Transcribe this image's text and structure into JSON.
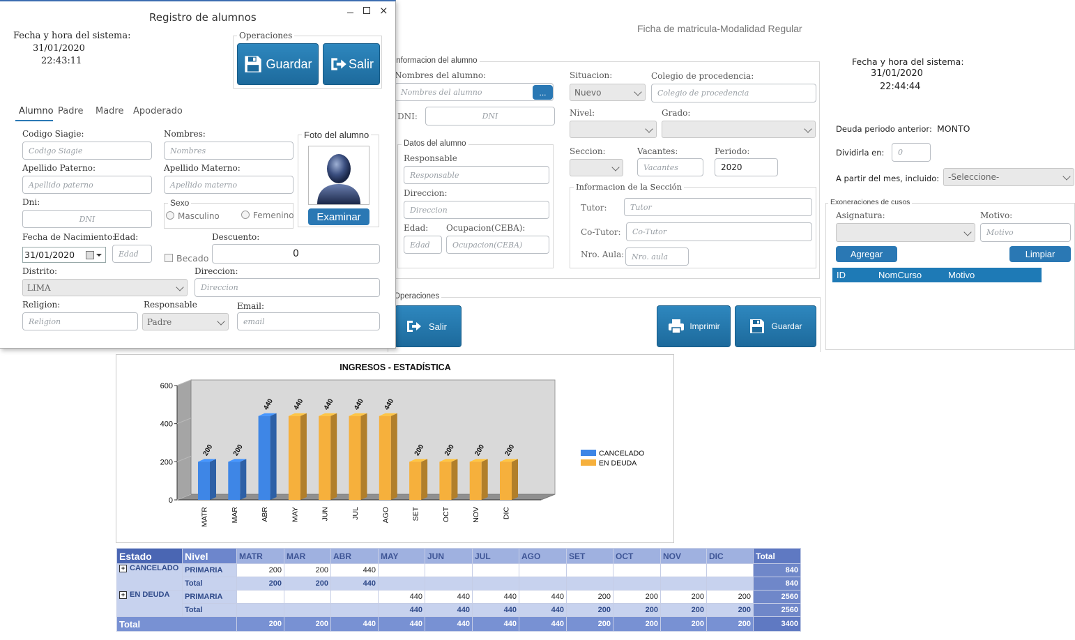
{
  "win1": {
    "title": "Registro de alumnos",
    "datetime_label": "Fecha y hora del sistema:",
    "date": "31/01/2020",
    "time": "22:43:11",
    "ops_label": "Operaciones",
    "guardar": "Guardar",
    "salir": "Salir",
    "tabs": [
      "Alumno",
      "Padre",
      "Madre",
      "Apoderado"
    ],
    "codigo_label": "Codigo Siagie:",
    "codigo_ph": "Codigo Siagie",
    "nombres_label": "Nombres:",
    "nombres_ph": "Nombres",
    "foto_label": "Foto del alumno",
    "examinar": "Examinar",
    "ap_pat_label": "Apellido Paterno:",
    "ap_pat_ph": "Apellido paterno",
    "ap_mat_label": "Apellido Materno:",
    "ap_mat_ph": "Apellido materno",
    "dni_label": "Dni:",
    "dni_ph": "DNI",
    "sexo_label": "Sexo",
    "masculino": "Masculino",
    "femenino": "Femenino",
    "fnac_label": "Fecha de Nacimiento:",
    "fnac_value": "31/01/2020",
    "edad_label": "Edad:",
    "edad_ph": "Edad",
    "descuento_label": "Descuento:",
    "descuento_value": "0",
    "becado": "Becado",
    "distrito_label": "Distrito:",
    "distrito_value": "LIMA",
    "direccion_label": "Direccion:",
    "direccion_ph": "Direccion",
    "religion_label": "Religion:",
    "religion_ph": "Religion",
    "responsable_label": "Responsable",
    "responsable_value": "Padre",
    "email_label": "Email:",
    "email_ph": "email"
  },
  "win2": {
    "title": "Ficha de matricula-Modalidad Regular",
    "info_label": "Informacion del alumno",
    "nombres_label": "Nombres del alumno:",
    "nombres_ph": "Nombres del alumno",
    "dots": "...",
    "dni_label": "DNI:",
    "dni_ph": "DNI",
    "situacion_label": "Situacion:",
    "situacion_value": "Nuevo",
    "colegio_label": "Colegio de procedencia:",
    "colegio_ph": "Colegio de procedencia",
    "nivel_label": "Nivel:",
    "grado_label": "Grado:",
    "datos_label": "Datos del alumno",
    "responsable_label": "Responsable",
    "responsable_ph": "Responsable",
    "direccion_label": "Direccion:",
    "direccion_ph": "Direccion",
    "edad_label": "Edad:",
    "edad_ph": "Edad",
    "ocupacion_label": "Ocupacion(CEBA):",
    "ocupacion_ph": "Ocupacion(CEBA)",
    "seccion_label": "Seccion:",
    "vacantes_label": "Vacantes:",
    "vacantes_ph": "Vacantes",
    "periodo_label": "Periodo:",
    "periodo_value": "2020",
    "info_seccion_label": "Informacion de la Sección",
    "tutor_label": "Tutor:",
    "tutor_ph": "Tutor",
    "cotutor_label": "Co-Tutor:",
    "cotutor_ph": "Co-Tutor",
    "aula_label": "Nro. Aula:",
    "aula_ph": "Nro. aula",
    "ops_label": "Operaciones",
    "salir": "Salir",
    "imprimir": "Imprimir",
    "guardar": "Guardar",
    "datetime_label": "Fecha y hora del sistema:",
    "date": "31/01/2020",
    "time": "22:44:44",
    "deuda_label": "Deuda periodo anterior:",
    "deuda_value": "MONTO",
    "dividir_label": "Dividirla en:",
    "dividir_ph": "0",
    "partir_label": "A partir del mes, incluido:",
    "partir_value": "-Seleccione-",
    "exo_label": "Exoneraciones de cusos",
    "asignatura_label": "Asignatura:",
    "motivo_label": "Motivo:",
    "motivo_ph": "Motivo",
    "agregar": "Agregar",
    "limpiar": "Limpiar",
    "grid_cols": [
      "ID",
      "NomCurso",
      "Motivo"
    ]
  },
  "chart_data": {
    "type": "bar",
    "title": "INGRESOS - ESTADÍSTICA",
    "categories": [
      "MATR",
      "MAR",
      "ABR",
      "MAY",
      "JUN",
      "JUL",
      "AGO",
      "SET",
      "OCT",
      "NOV",
      "DIC"
    ],
    "series": [
      {
        "name": "CANCELADO",
        "values": [
          200,
          200,
          440,
          null,
          null,
          null,
          null,
          null,
          null,
          null,
          null
        ],
        "color": "#3e86e6"
      },
      {
        "name": "EN DEUDA",
        "values": [
          null,
          null,
          null,
          440,
          440,
          440,
          440,
          200,
          200,
          200,
          200
        ],
        "color": "#f6b03c"
      }
    ],
    "yticks": [
      "0",
      "200",
      "400",
      "600"
    ],
    "ylim": [
      0,
      600
    ],
    "grid": false,
    "legend": "right"
  },
  "pivot": {
    "headers": [
      "Estado",
      "Nivel",
      "MATR",
      "MAR",
      "ABR",
      "MAY",
      "JUN",
      "JUL",
      "AGO",
      "SET",
      "OCT",
      "NOV",
      "DIC",
      "Total"
    ],
    "rows": [
      {
        "estado": "CANCELADO",
        "nivel": "PRIMARIA",
        "cells": [
          "200",
          "200",
          "440",
          "",
          "",
          "",
          "",
          "",
          "",
          "",
          ""
        ],
        "total": "840"
      },
      {
        "estado": "",
        "nivel": "Total",
        "cells": [
          "200",
          "200",
          "440",
          "",
          "",
          "",
          "",
          "",
          "",
          "",
          ""
        ],
        "total": "840"
      },
      {
        "estado": "EN DEUDA",
        "nivel": "PRIMARIA",
        "cells": [
          "",
          "",
          "",
          "440",
          "440",
          "440",
          "440",
          "200",
          "200",
          "200",
          "200"
        ],
        "total": "2560"
      },
      {
        "estado": "",
        "nivel": "Total",
        "cells": [
          "",
          "",
          "",
          "440",
          "440",
          "440",
          "440",
          "200",
          "200",
          "200",
          "200"
        ],
        "total": "2560"
      }
    ],
    "grand_label": "Total",
    "grand_cells": [
      "200",
      "200",
      "440",
      "440",
      "440",
      "440",
      "440",
      "200",
      "200",
      "200",
      "200"
    ],
    "grand_total": "3400"
  }
}
